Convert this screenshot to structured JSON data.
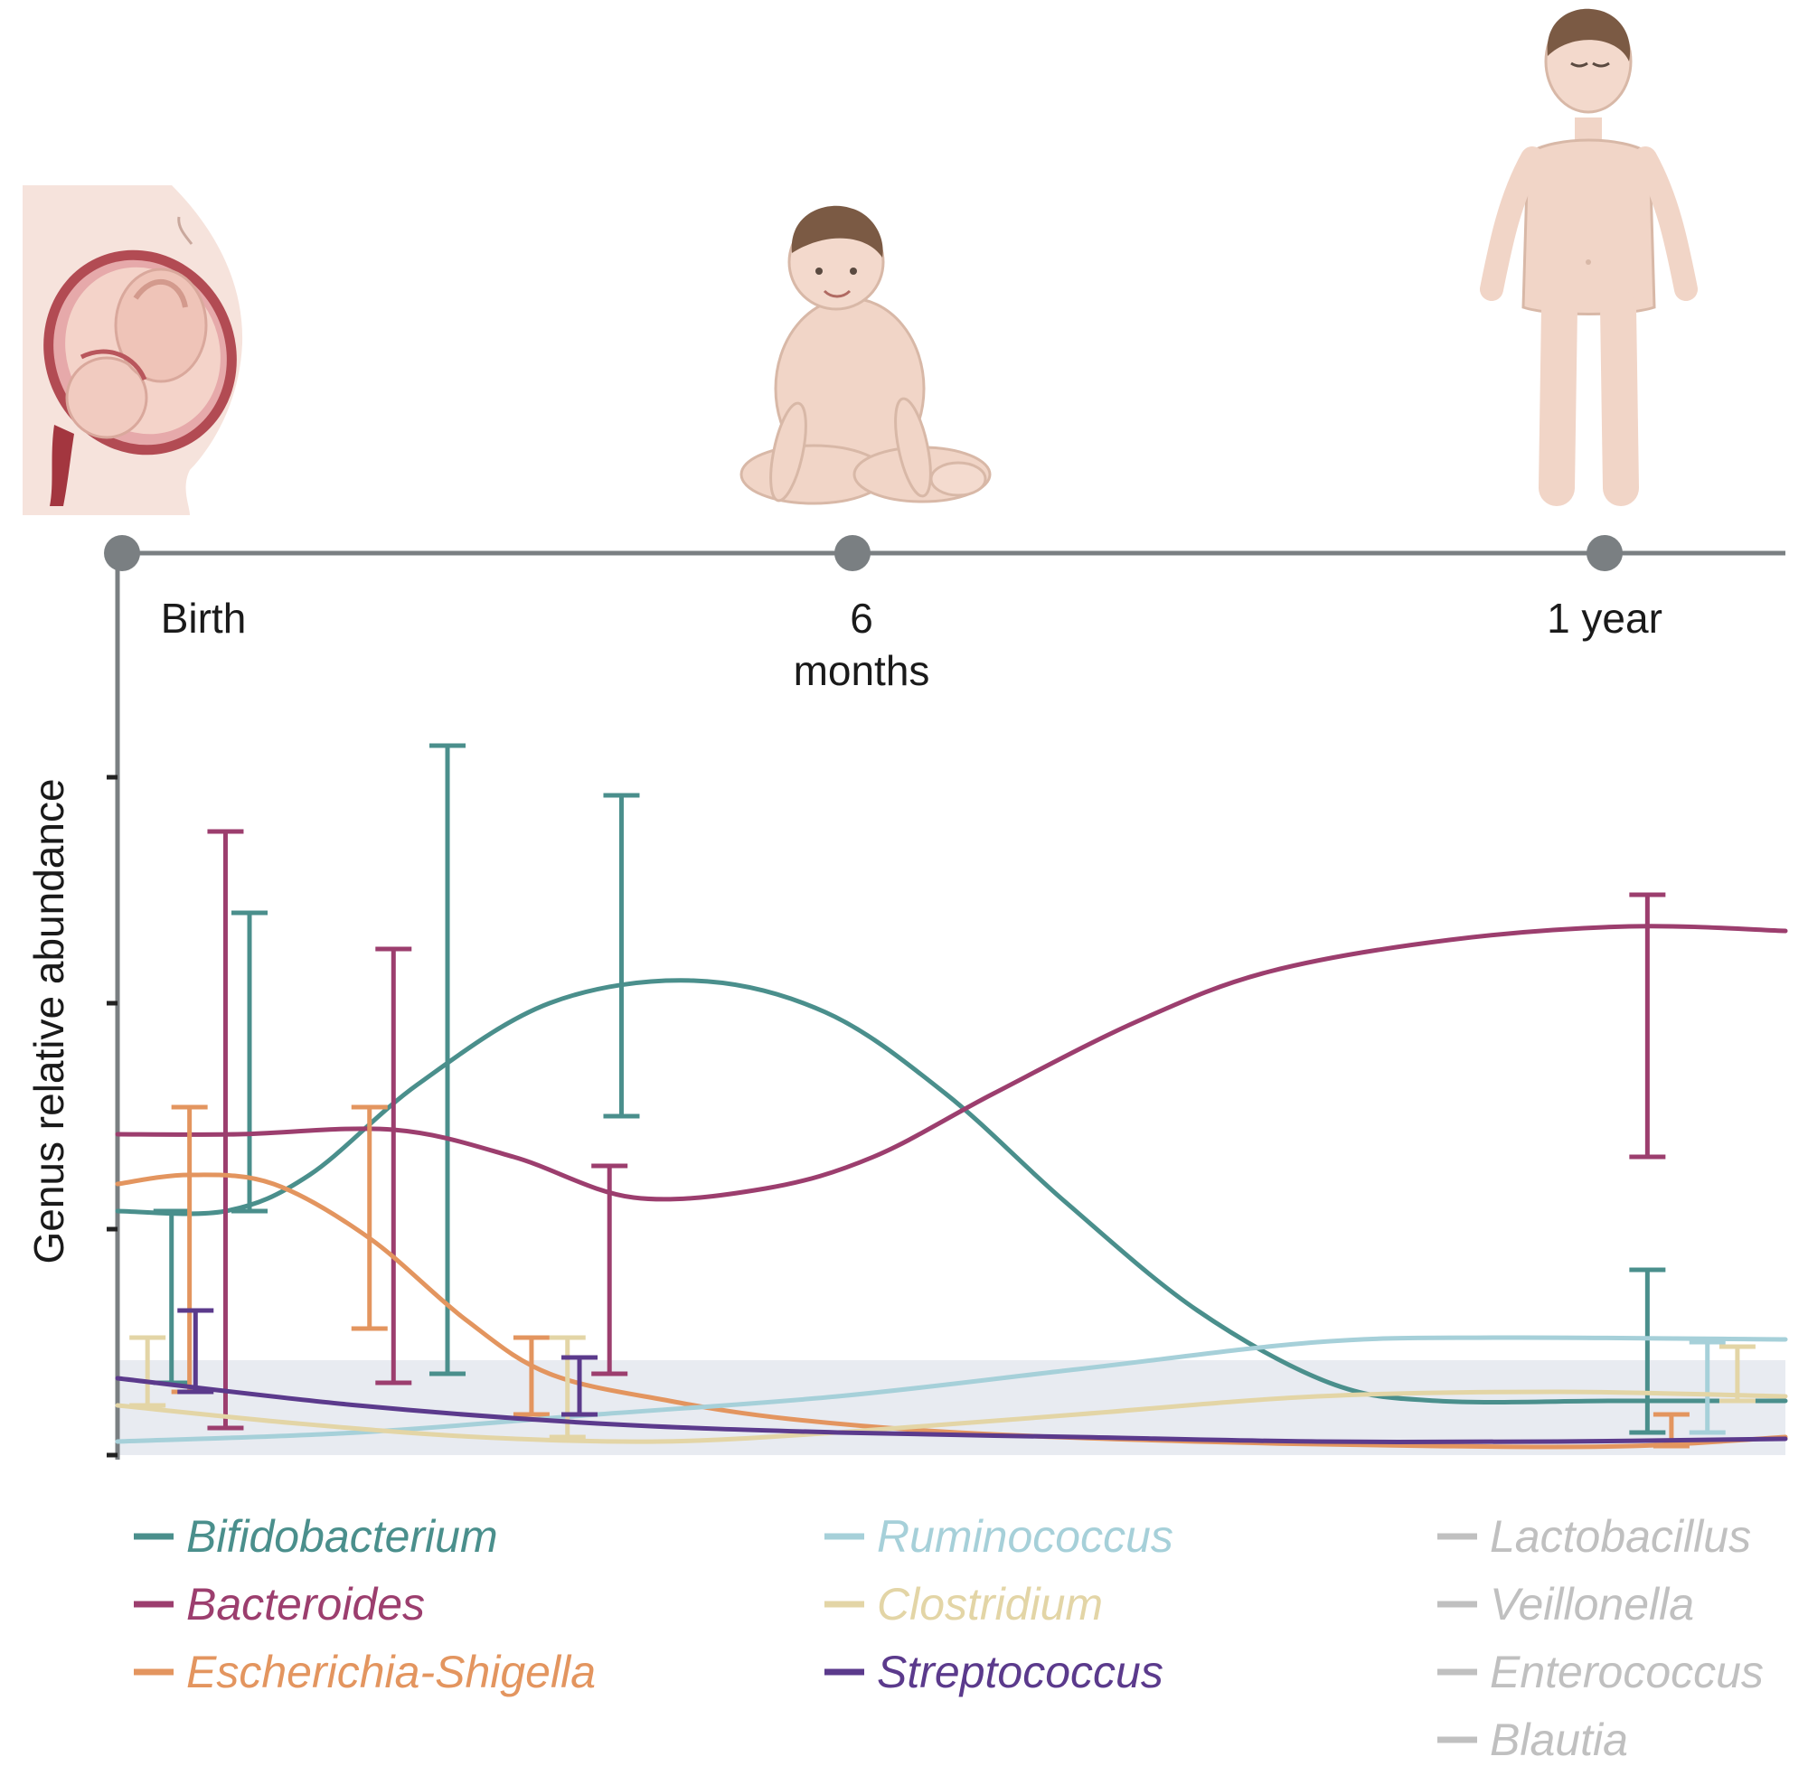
{
  "timeline": {
    "labels": [
      {
        "lines": [
          "Birth"
        ],
        "month": 0
      },
      {
        "lines": [
          "6",
          "months"
        ],
        "month": 6
      },
      {
        "lines": [
          "1 year"
        ],
        "month": 12
      }
    ]
  },
  "illustrations": [
    {
      "name": "pregnant-uterus-illustration",
      "at": "birth"
    },
    {
      "name": "sitting-baby-illustration",
      "at": "6 months"
    },
    {
      "name": "standing-toddler-illustration",
      "at": "1 year"
    }
  ],
  "chart_data": {
    "type": "line",
    "title": "",
    "xlabel": "",
    "ylabel": "Genus relative abundance",
    "x_units": "months",
    "xlim": [
      0,
      13.9
    ],
    "ylim": [
      0,
      1
    ],
    "y_ticks": [
      0,
      0.25,
      0.5,
      0.75
    ],
    "y_tick_labels_shown": false,
    "shaded_band": {
      "y": [
        0,
        0.105
      ],
      "color": "#e8ebf1"
    },
    "grid": false,
    "legend_position": "bottom",
    "series": [
      {
        "name": "Bifidobacterium",
        "color": "#4a8f8c",
        "curve": [
          [
            0,
            0.27
          ],
          [
            0.9,
            0.27
          ],
          [
            1.6,
            0.31
          ],
          [
            2.5,
            0.41
          ],
          [
            3.6,
            0.5
          ],
          [
            4.8,
            0.525
          ],
          [
            5.9,
            0.49
          ],
          [
            6.9,
            0.4
          ],
          [
            7.9,
            0.28
          ],
          [
            9.0,
            0.16
          ],
          [
            10.1,
            0.08
          ],
          [
            11.0,
            0.06
          ],
          [
            12.5,
            0.06
          ],
          [
            13.9,
            0.06
          ]
        ],
        "error_bars": [
          {
            "x": 0.45,
            "low": 0.08,
            "high": 0.27
          },
          {
            "x": 1.1,
            "low": 0.27,
            "high": 0.6
          },
          {
            "x": 2.75,
            "low": 0.09,
            "high": 0.785
          },
          {
            "x": 4.2,
            "low": 0.375,
            "high": 0.73
          },
          {
            "x": 12.75,
            "low": 0.025,
            "high": 0.205
          }
        ]
      },
      {
        "name": "Bacteroides",
        "color": "#9c3e6e",
        "curve": [
          [
            0,
            0.355
          ],
          [
            1.0,
            0.355
          ],
          [
            2.3,
            0.36
          ],
          [
            3.3,
            0.33
          ],
          [
            4.3,
            0.285
          ],
          [
            5.4,
            0.295
          ],
          [
            6.3,
            0.33
          ],
          [
            7.3,
            0.4
          ],
          [
            8.5,
            0.48
          ],
          [
            9.6,
            0.535
          ],
          [
            11.1,
            0.57
          ],
          [
            12.6,
            0.585
          ],
          [
            13.9,
            0.58
          ]
        ],
        "error_bars": [
          {
            "x": 0.9,
            "low": 0.03,
            "high": 0.69
          },
          {
            "x": 2.3,
            "low": 0.08,
            "high": 0.56
          },
          {
            "x": 4.1,
            "low": 0.09,
            "high": 0.32
          },
          {
            "x": 12.75,
            "low": 0.33,
            "high": 0.62
          }
        ]
      },
      {
        "name": "Escherichia-Shigella",
        "color": "#e3955f",
        "curve": [
          [
            0,
            0.3
          ],
          [
            0.6,
            0.31
          ],
          [
            1.3,
            0.3
          ],
          [
            2.1,
            0.24
          ],
          [
            2.9,
            0.15
          ],
          [
            3.6,
            0.09
          ],
          [
            4.6,
            0.06
          ],
          [
            5.6,
            0.04
          ],
          [
            7.0,
            0.025
          ],
          [
            9.0,
            0.015
          ],
          [
            11.0,
            0.01
          ],
          [
            12.6,
            0.01
          ],
          [
            13.9,
            0.02
          ]
        ],
        "error_bars": [
          {
            "x": 0.6,
            "low": 0.07,
            "high": 0.385
          },
          {
            "x": 2.1,
            "low": 0.14,
            "high": 0.385
          },
          {
            "x": 3.45,
            "low": 0.045,
            "high": 0.13
          },
          {
            "x": 12.95,
            "low": 0.01,
            "high": 0.045
          }
        ]
      },
      {
        "name": "Ruminococcus",
        "color": "#a6d0d9",
        "curve": [
          [
            0,
            0.015
          ],
          [
            2.0,
            0.025
          ],
          [
            4.0,
            0.045
          ],
          [
            6.0,
            0.065
          ],
          [
            8.0,
            0.095
          ],
          [
            10.0,
            0.125
          ],
          [
            11.5,
            0.13
          ],
          [
            13.9,
            0.128
          ]
        ],
        "error_bars": [
          {
            "x": 13.25,
            "low": 0.025,
            "high": 0.125
          }
        ]
      },
      {
        "name": "Clostridium",
        "color": "#e3d5a6",
        "curve": [
          [
            0,
            0.055
          ],
          [
            1.5,
            0.035
          ],
          [
            3.0,
            0.02
          ],
          [
            4.5,
            0.015
          ],
          [
            6.0,
            0.025
          ],
          [
            8.0,
            0.045
          ],
          [
            10.0,
            0.065
          ],
          [
            12.0,
            0.07
          ],
          [
            13.9,
            0.065
          ]
        ],
        "error_bars": [
          {
            "x": 0.25,
            "low": 0.055,
            "high": 0.13
          },
          {
            "x": 3.75,
            "low": 0.02,
            "high": 0.13
          },
          {
            "x": 13.5,
            "low": 0.06,
            "high": 0.12
          }
        ]
      },
      {
        "name": "Streptococcus",
        "color": "#5b3a8c",
        "curve": [
          [
            0,
            0.085
          ],
          [
            2.0,
            0.055
          ],
          [
            4.0,
            0.035
          ],
          [
            6.0,
            0.025
          ],
          [
            8.0,
            0.02
          ],
          [
            10.0,
            0.015
          ],
          [
            12.0,
            0.015
          ],
          [
            13.9,
            0.018
          ]
        ],
        "error_bars": [
          {
            "x": 0.65,
            "low": 0.07,
            "high": 0.16
          },
          {
            "x": 3.85,
            "low": 0.045,
            "high": 0.108
          }
        ]
      },
      {
        "name": "Lactobacillus",
        "color": "#c0c0c0",
        "curve": [],
        "error_bars": []
      },
      {
        "name": "Veillonella",
        "color": "#c0c0c0",
        "curve": [],
        "error_bars": []
      },
      {
        "name": "Enterococcus",
        "color": "#c0c0c0",
        "curve": [],
        "error_bars": []
      },
      {
        "name": "Blautia",
        "color": "#c0c0c0",
        "curve": [],
        "error_bars": []
      }
    ]
  }
}
